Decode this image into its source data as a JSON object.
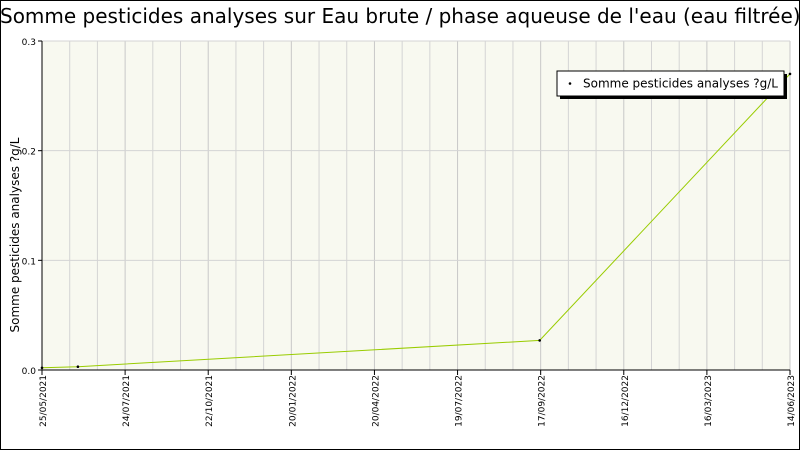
{
  "chart_data": {
    "type": "line",
    "title": "Somme pesticides analyses sur Eau brute / phase aqueuse de l'eau (eau filtrée)",
    "ylabel": "Somme pesticides analyses ?g/L",
    "xlabel": "",
    "x_ticks": [
      "25/05/2021",
      "24/07/2021",
      "22/10/2021",
      "20/01/2022",
      "20/04/2022",
      "19/07/2022",
      "17/09/2022",
      "16/12/2022",
      "16/03/2023",
      "14/06/2023"
    ],
    "y_ticks": [
      "0.0",
      "0.1",
      "0.2",
      "0.3"
    ],
    "ylim": [
      0,
      0.3
    ],
    "xlim": [
      "2021-05-25",
      "2023-06-14"
    ],
    "grid": true,
    "legend_position": "top-right",
    "series": [
      {
        "name": "Somme pesticides analyses ?g/L",
        "color": "#99cc00",
        "points": [
          {
            "x": "2021-05-25",
            "y": 0.002
          },
          {
            "x": "2021-06-30",
            "y": 0.003
          },
          {
            "x": "2022-10-06",
            "y": 0.027
          },
          {
            "x": "2023-06-14",
            "y": 0.27
          }
        ]
      }
    ]
  }
}
